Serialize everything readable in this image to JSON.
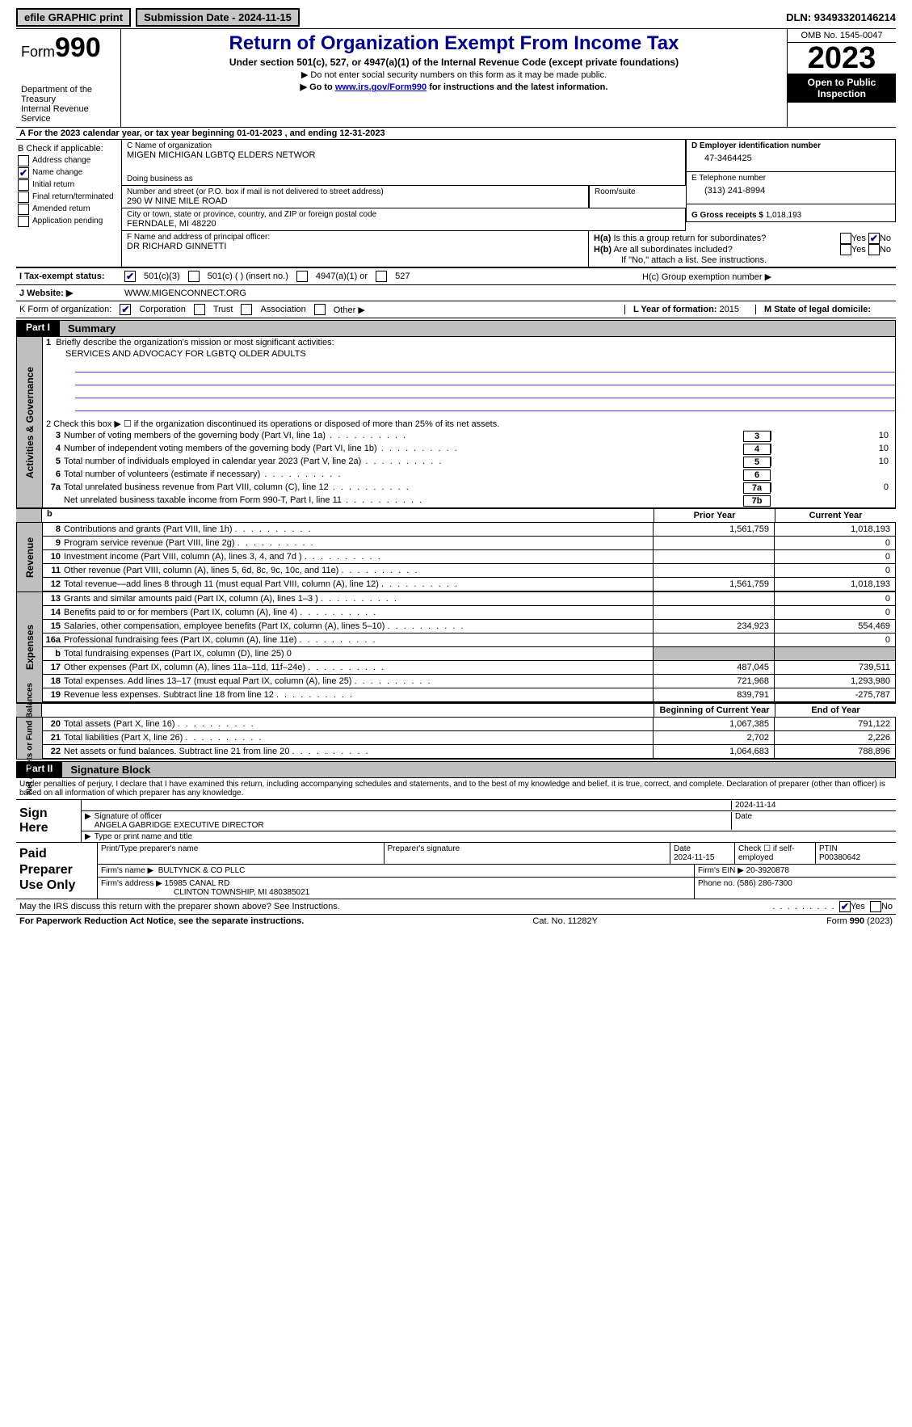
{
  "topbar": {
    "efile": "efile GRAPHIC print",
    "sub_label": "Submission Date - ",
    "sub_date": "2024-11-15",
    "dln_label": "DLN: ",
    "dln": "93493320146214"
  },
  "header": {
    "form_prefix": "Form",
    "form_num": "990",
    "dept": "Department of the Treasury\nInternal Revenue Service",
    "title": "Return of Organization Exempt From Income Tax",
    "sub1": "Under section 501(c), 527, or 4947(a)(1) of the Internal Revenue Code (except private foundations)",
    "sub2": "Do not enter social security numbers on this form as it may be made public.",
    "sub3_pre": "Go to ",
    "sub3_link": "www.irs.gov/Form990",
    "sub3_post": " for instructions and the latest information.",
    "omb": "OMB No. 1545-0047",
    "year": "2023",
    "open": "Open to Public Inspection"
  },
  "rowA": {
    "text": "A  For the 2023 calendar year, or tax year beginning 01-01-2023    , and ending 12-31-2023"
  },
  "boxB": {
    "hdr": "B Check if applicable:",
    "items": [
      {
        "label": "Address change",
        "checked": false
      },
      {
        "label": "Name change",
        "checked": true
      },
      {
        "label": "Initial return",
        "checked": false
      },
      {
        "label": "Final return/terminated",
        "checked": false
      },
      {
        "label": "Amended return",
        "checked": false
      },
      {
        "label": "Application pending",
        "checked": false
      }
    ]
  },
  "boxC": {
    "name_lbl": "C Name of organization",
    "name": "MIGEN MICHIGAN LGBTQ ELDERS NETWOR",
    "dba_lbl": "Doing business as",
    "dba": "",
    "addr_lbl": "Number and street (or P.O. box if mail is not delivered to street address)",
    "addr": "290 W NINE MILE ROAD",
    "room_lbl": "Room/suite",
    "city_lbl": "City or town, state or province, country, and ZIP or foreign postal code",
    "city": "FERNDALE, MI  48220"
  },
  "boxD": {
    "ein_lbl": "D Employer identification number",
    "ein": "47-3464425",
    "tel_lbl": "E Telephone number",
    "tel": "(313) 241-8994",
    "gross_lbl": "G Gross receipts $ ",
    "gross": "1,018,193"
  },
  "boxF": {
    "lbl": "F  Name and address of principal officer:",
    "val": "DR RICHARD GINNETTI"
  },
  "boxH": {
    "ha_lbl": "H(a)  Is this a group return for subordinates?",
    "ha_yes": "Yes",
    "ha_no": "No",
    "hb_lbl": "H(b)  Are all subordinates included?",
    "hb_note": "If \"No,\" attach a list. See instructions.",
    "hc_lbl": "H(c)  Group exemption number ▶"
  },
  "taxexempt": {
    "lbl": "I   Tax-exempt status:",
    "c3": "501(c)(3)",
    "c": "501(c) (  ) (insert no.)",
    "a": "4947(a)(1) or",
    "s527": "527"
  },
  "website": {
    "lbl": "J   Website: ▶",
    "val": "WWW.MIGENCONNECT.ORG"
  },
  "formorg": {
    "lbl": "K Form of organization:",
    "corp": "Corporation",
    "trust": "Trust",
    "assoc": "Association",
    "other": "Other ▶",
    "year_lbl": "L Year of formation: ",
    "year": "2015",
    "state_lbl": "M State of legal domicile:",
    "state": ""
  },
  "part1": {
    "tab": "Part I",
    "title": "Summary"
  },
  "gov_section": {
    "vtab": "Activities & Governance",
    "q1_lbl": "1   Briefly describe the organization's mission or most significant activities:",
    "q1_val": "SERVICES AND ADVOCACY FOR LGBTQ OLDER ADULTS",
    "q2": "2   Check this box ▶ ☐ if the organization discontinued its operations or disposed of more than 25% of its net assets.",
    "rows": [
      {
        "n": "3",
        "t": "Number of voting members of the governing body (Part VI, line 1a)",
        "box": "3",
        "v": "10"
      },
      {
        "n": "4",
        "t": "Number of independent voting members of the governing body (Part VI, line 1b)",
        "box": "4",
        "v": "10"
      },
      {
        "n": "5",
        "t": "Total number of individuals employed in calendar year 2023 (Part V, line 2a)",
        "box": "5",
        "v": "10"
      },
      {
        "n": "6",
        "t": "Total number of volunteers (estimate if necessary)",
        "box": "6",
        "v": ""
      },
      {
        "n": "7a",
        "t": "Total unrelated business revenue from Part VIII, column (C), line 12",
        "box": "7a",
        "v": "0"
      },
      {
        "n": "",
        "t": "Net unrelated business taxable income from Form 990-T, Part I, line 11",
        "box": "7b",
        "v": ""
      }
    ]
  },
  "colhdr": {
    "prior": "Prior Year",
    "curr": "Current Year"
  },
  "revenue": {
    "vtab": "Revenue",
    "rows": [
      {
        "n": "8",
        "t": "Contributions and grants (Part VIII, line 1h)",
        "p": "1,561,759",
        "c": "1,018,193"
      },
      {
        "n": "9",
        "t": "Program service revenue (Part VIII, line 2g)",
        "p": "",
        "c": "0"
      },
      {
        "n": "10",
        "t": "Investment income (Part VIII, column (A), lines 3, 4, and 7d )",
        "p": "",
        "c": "0"
      },
      {
        "n": "11",
        "t": "Other revenue (Part VIII, column (A), lines 5, 6d, 8c, 9c, 10c, and 11e)",
        "p": "",
        "c": "0"
      },
      {
        "n": "12",
        "t": "Total revenue—add lines 8 through 11 (must equal Part VIII, column (A), line 12)",
        "p": "1,561,759",
        "c": "1,018,193"
      }
    ]
  },
  "expenses": {
    "vtab": "Expenses",
    "rows": [
      {
        "n": "13",
        "t": "Grants and similar amounts paid (Part IX, column (A), lines 1–3 )",
        "p": "",
        "c": "0"
      },
      {
        "n": "14",
        "t": "Benefits paid to or for members (Part IX, column (A), line 4)",
        "p": "",
        "c": "0"
      },
      {
        "n": "15",
        "t": "Salaries, other compensation, employee benefits (Part IX, column (A), lines 5–10)",
        "p": "234,923",
        "c": "554,469"
      },
      {
        "n": "16a",
        "t": "Professional fundraising fees (Part IX, column (A), line 11e)",
        "p": "",
        "c": "0"
      },
      {
        "n": "b",
        "t": "Total fundraising expenses (Part IX, column (D), line 25) 0",
        "p": "SHADE",
        "c": "SHADE"
      },
      {
        "n": "17",
        "t": "Other expenses (Part IX, column (A), lines 11a–11d, 11f–24e)",
        "p": "487,045",
        "c": "739,511"
      },
      {
        "n": "18",
        "t": "Total expenses. Add lines 13–17 (must equal Part IX, column (A), line 25)",
        "p": "721,968",
        "c": "1,293,980"
      },
      {
        "n": "19",
        "t": "Revenue less expenses. Subtract line 18 from line 12",
        "p": "839,791",
        "c": "-275,787"
      }
    ]
  },
  "nethdr": {
    "boy": "Beginning of Current Year",
    "eoy": "End of Year"
  },
  "net": {
    "vtab": "Net Assets or Fund Balances",
    "rows": [
      {
        "n": "20",
        "t": "Total assets (Part X, line 16)",
        "p": "1,067,385",
        "c": "791,122"
      },
      {
        "n": "21",
        "t": "Total liabilities (Part X, line 26)",
        "p": "2,702",
        "c": "2,226"
      },
      {
        "n": "22",
        "t": "Net assets or fund balances. Subtract line 21 from line 20",
        "p": "1,064,683",
        "c": "788,896"
      }
    ]
  },
  "part2": {
    "tab": "Part II",
    "title": "Signature Block"
  },
  "sig": {
    "perjury": "Under penalties of perjury, I declare that I have examined this return, including accompanying schedules and statements, and to the best of my knowledge and belief, it is true, correct, and complete. Declaration of preparer (other than officer) is based on all information of which preparer has any knowledge.",
    "sign_here": "Sign Here",
    "date": "2024-11-14",
    "sig_of": "Signature of officer",
    "officer": "ANGELA GABRIDGE  EXECUTIVE DIRECTOR",
    "type_name": "Type or print name and title",
    "date_lbl": "Date"
  },
  "prep": {
    "lbl": "Paid Preparer Use Only",
    "print_lbl": "Print/Type preparer's name",
    "sig_lbl": "Preparer's signature",
    "date_lbl": "Date",
    "date": "2024-11-15",
    "check_lbl": "Check ☐ if self-employed",
    "ptin_lbl": "PTIN",
    "ptin": "P00380642",
    "firm_name_lbl": "Firm's name   ▶",
    "firm_name": "BULTYNCK & CO PLLC",
    "firm_ein_lbl": "Firm's EIN ▶",
    "firm_ein": "20-3920878",
    "firm_addr_lbl": "Firm's address ▶",
    "firm_addr": "15985 CANAL RD",
    "firm_city": "CLINTON TOWNSHIP, MI  480385021",
    "phone_lbl": "Phone no.",
    "phone": "(586) 286-7300"
  },
  "discuss": {
    "q": "May the IRS discuss this return with the preparer shown above? See Instructions.",
    "yes": "Yes",
    "no": "No"
  },
  "footer": {
    "left": "For Paperwork Reduction Act Notice, see the separate instructions.",
    "mid": "Cat. No. 11282Y",
    "right": "Form 990 (2023)"
  }
}
